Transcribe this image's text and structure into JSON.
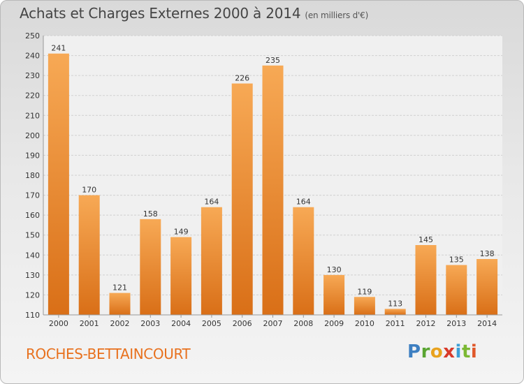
{
  "header": {
    "title": "Achats et Charges Externes 2000 à 2014",
    "unit": "(en milliers d'€)"
  },
  "footer": {
    "town": "ROCHES-BETTAINCOURT",
    "logo": "Proxiti"
  },
  "colors": {
    "bar_light": "#f7a955",
    "bar_dark": "#d96f17",
    "town_text": "#e8711e"
  },
  "chart_data": {
    "type": "bar",
    "title": "Achats et Charges Externes 2000 à 2014",
    "subtitle": "(en milliers d'€)",
    "categories": [
      "2000",
      "2001",
      "2002",
      "2003",
      "2004",
      "2005",
      "2006",
      "2007",
      "2008",
      "2009",
      "2010",
      "2011",
      "2012",
      "2013",
      "2014"
    ],
    "values": [
      241,
      170,
      121,
      158,
      149,
      164,
      226,
      235,
      164,
      130,
      119,
      113,
      145,
      135,
      138
    ],
    "ylim": [
      110,
      250
    ],
    "yticks": [
      110,
      120,
      130,
      140,
      150,
      160,
      170,
      180,
      190,
      200,
      210,
      220,
      230,
      240,
      250
    ],
    "grid": true,
    "legend": "none"
  }
}
